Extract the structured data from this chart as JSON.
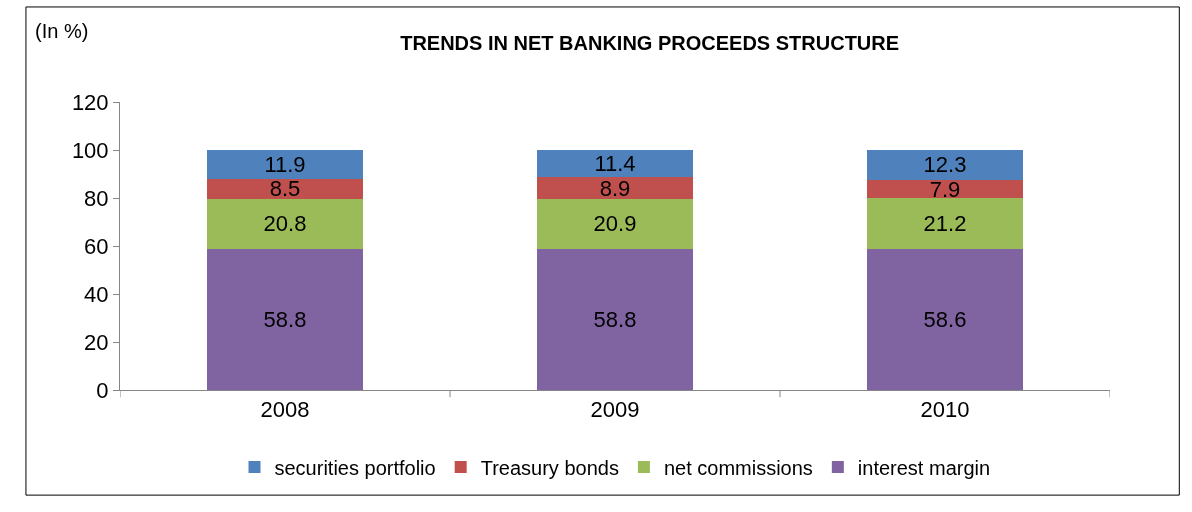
{
  "chart_data": {
    "type": "bar",
    "title": "TRENDS IN NET BANKING PROCEEDS STRUCTURE",
    "ylabel": "(In %)",
    "categories": [
      "2008",
      "2009",
      "2010"
    ],
    "stacked": true,
    "data_labels": true,
    "series": [
      {
        "name": "interest margin",
        "color": "#8064a2",
        "values": [
          58.8,
          58.8,
          58.6
        ]
      },
      {
        "name": "net commissions",
        "color": "#9bbb59",
        "values": [
          20.8,
          20.9,
          21.2
        ]
      },
      {
        "name": "Treasury bonds",
        "color": "#c0504d",
        "values": [
          8.5,
          8.9,
          7.9
        ]
      },
      {
        "name": "securities portfolio",
        "color": "#4f81bd",
        "values": [
          11.9,
          11.4,
          12.3
        ]
      }
    ],
    "ylim": [
      0,
      120
    ],
    "yticks": [
      0,
      20,
      40,
      60,
      80,
      100,
      120
    ],
    "legend": "bottom"
  }
}
